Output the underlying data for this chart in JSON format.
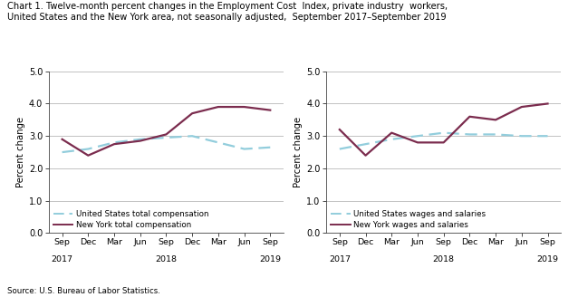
{
  "title_line1": "Chart 1. Twelve-month percent changes in the Employment Cost  Index, private industry  workers,",
  "title_line2": "United States and the New York area, not seasonally adjusted,  September 2017–September 2019",
  "source": "Source: U.S. Bureau of Labor Statistics.",
  "ylabel": "Percent change",
  "ylim": [
    0.0,
    5.0
  ],
  "yticks": [
    0.0,
    1.0,
    2.0,
    3.0,
    4.0,
    5.0
  ],
  "left_us": [
    2.5,
    2.6,
    2.8,
    2.9,
    2.95,
    3.0,
    2.8,
    2.6,
    2.65
  ],
  "left_ny": [
    2.9,
    2.4,
    2.75,
    2.85,
    3.05,
    3.7,
    3.9,
    3.9,
    3.8
  ],
  "left_legend1": "United States total compensation",
  "left_legend2": "New York total compensation",
  "right_us": [
    2.6,
    2.75,
    2.9,
    3.0,
    3.1,
    3.05,
    3.05,
    3.0,
    3.0
  ],
  "right_ny": [
    3.2,
    2.4,
    3.1,
    2.8,
    2.8,
    3.6,
    3.5,
    3.9,
    4.0
  ],
  "right_legend1": "United States wages and salaries",
  "right_legend2": "New York wages and salaries",
  "us_color": "#92cddc",
  "ny_color": "#7b2c4e",
  "grid_color": "#b8b8b8",
  "bg_color": "#ffffff",
  "x_month_labels": [
    "Sep",
    "Dec",
    "Mar",
    "Jun",
    "Sep",
    "Dec",
    "Mar",
    "Jun",
    "Sep"
  ],
  "x_year_row": [
    "2017",
    "",
    "",
    "",
    "2018",
    "",
    "",
    "",
    "2019"
  ]
}
